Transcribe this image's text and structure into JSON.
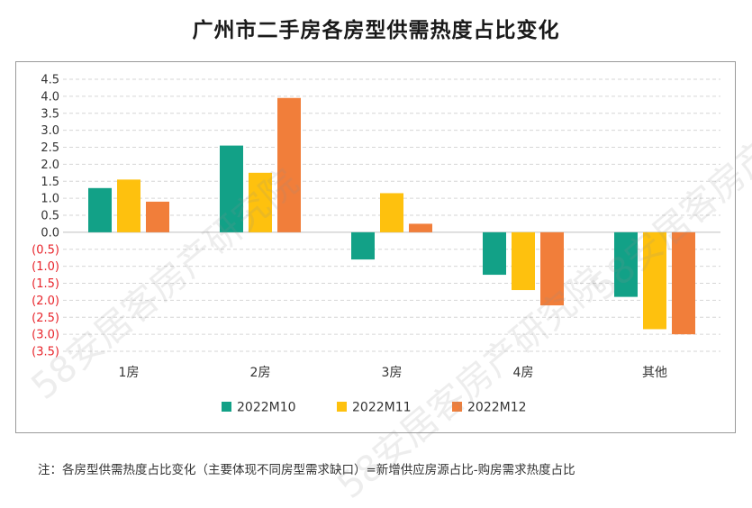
{
  "title": "广州市二手房各房型供需热度占比变化",
  "note": "注：各房型供需热度占比变化（主要体现不同房型需求缺口）=新增供应房源占比-购房需求热度占比",
  "watermark": "58安居客房产研究院",
  "chart_data": {
    "type": "bar",
    "categories": [
      "1房",
      "2房",
      "3房",
      "4房",
      "其他"
    ],
    "series": [
      {
        "name": "2022M10",
        "color": "#12a187",
        "values": [
          1.3,
          2.55,
          -0.8,
          -1.25,
          -1.9
        ]
      },
      {
        "name": "2022M11",
        "color": "#fec10e",
        "values": [
          1.55,
          1.75,
          1.15,
          -1.7,
          -2.85
        ]
      },
      {
        "name": "2022M12",
        "color": "#f17e3a",
        "values": [
          0.9,
          3.95,
          0.25,
          -2.15,
          -3.0
        ]
      }
    ],
    "yticks": [
      "4.5",
      "4.0",
      "3.5",
      "3.0",
      "2.5",
      "2.0",
      "1.5",
      "1.0",
      "0.5",
      "0.0",
      "(0.5)",
      "(1.0)",
      "(1.5)",
      "(2.0)",
      "(2.5)",
      "(3.0)",
      "(3.5)"
    ],
    "ylim": [
      -3.5,
      4.5
    ],
    "negative_tick_color": "#e8242b",
    "grid": true,
    "legend_position": "bottom"
  }
}
